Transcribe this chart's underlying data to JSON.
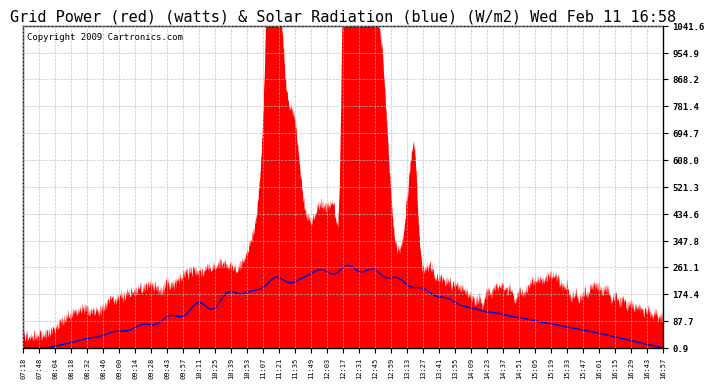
{
  "title": "Grid Power (red) (watts) & Solar Radiation (blue) (W/m2) Wed Feb 11 16:58",
  "copyright": "Copyright 2009 Cartronics.com",
  "ylabel_right": [
    "1041.6",
    "954.9",
    "868.2",
    "781.4",
    "694.7",
    "608.0",
    "521.3",
    "434.6",
    "347.8",
    "261.1",
    "174.4",
    "87.7",
    "0.9"
  ],
  "ymin": 0.9,
  "ymax": 1041.6,
  "yticks": [
    1041.6,
    954.9,
    868.2,
    781.4,
    694.7,
    608.0,
    521.3,
    434.6,
    347.8,
    261.1,
    174.4,
    87.7,
    0.9
  ],
  "xtick_labels": [
    "07:18",
    "07:48",
    "08:04",
    "08:18",
    "08:32",
    "08:46",
    "09:00",
    "09:14",
    "09:28",
    "09:43",
    "09:57",
    "10:11",
    "10:25",
    "10:39",
    "10:53",
    "11:07",
    "11:21",
    "11:35",
    "11:49",
    "12:03",
    "12:17",
    "12:31",
    "12:45",
    "12:59",
    "13:13",
    "13:27",
    "13:41",
    "13:55",
    "14:09",
    "14:23",
    "14:37",
    "14:51",
    "15:05",
    "15:19",
    "15:33",
    "15:47",
    "16:01",
    "16:15",
    "16:29",
    "16:43",
    "16:57"
  ],
  "bg_color": "#ffffff",
  "plot_bg_color": "#ffffff",
  "grid_color": "#bbbbbb",
  "red_color": "#ff0000",
  "blue_color": "#0000cc",
  "title_fontsize": 11,
  "copyright_fontsize": 6.5
}
